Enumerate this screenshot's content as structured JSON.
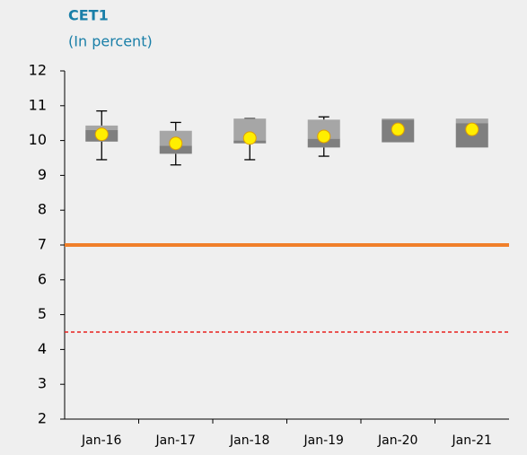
{
  "chart_data": {
    "type": "box",
    "title": "CET1",
    "subtitle": "(In percent)",
    "categories": [
      "Jan-16",
      "Jan-17",
      "Jan-18",
      "Jan-19",
      "Jan-20",
      "Jan-21"
    ],
    "min": [
      9.45,
      9.3,
      9.45,
      9.55,
      null,
      null
    ],
    "q1": [
      9.97,
      9.62,
      9.92,
      9.8,
      9.95,
      9.8
    ],
    "median": [
      10.3,
      9.85,
      10.0,
      10.05,
      10.6,
      10.5
    ],
    "q3": [
      10.43,
      10.28,
      10.63,
      10.6,
      10.63,
      10.63
    ],
    "max": [
      10.85,
      10.52,
      10.63,
      10.68,
      null,
      null
    ],
    "mean": [
      10.18,
      9.92,
      10.07,
      10.12,
      10.32,
      10.32
    ],
    "box_upper_color": "#a6a6a6",
    "box_lower_color": "#7f7f7f",
    "mean_color": "#ffee00",
    "hlines": [
      {
        "value": 7,
        "color": "#f07f2a",
        "dashed": false
      },
      {
        "value": 4.5,
        "color": "#e8201f",
        "dashed": true
      }
    ],
    "ylim": [
      2,
      12
    ],
    "yticks": [
      2,
      3,
      4,
      5,
      6,
      7,
      8,
      9,
      10,
      11,
      12
    ]
  }
}
